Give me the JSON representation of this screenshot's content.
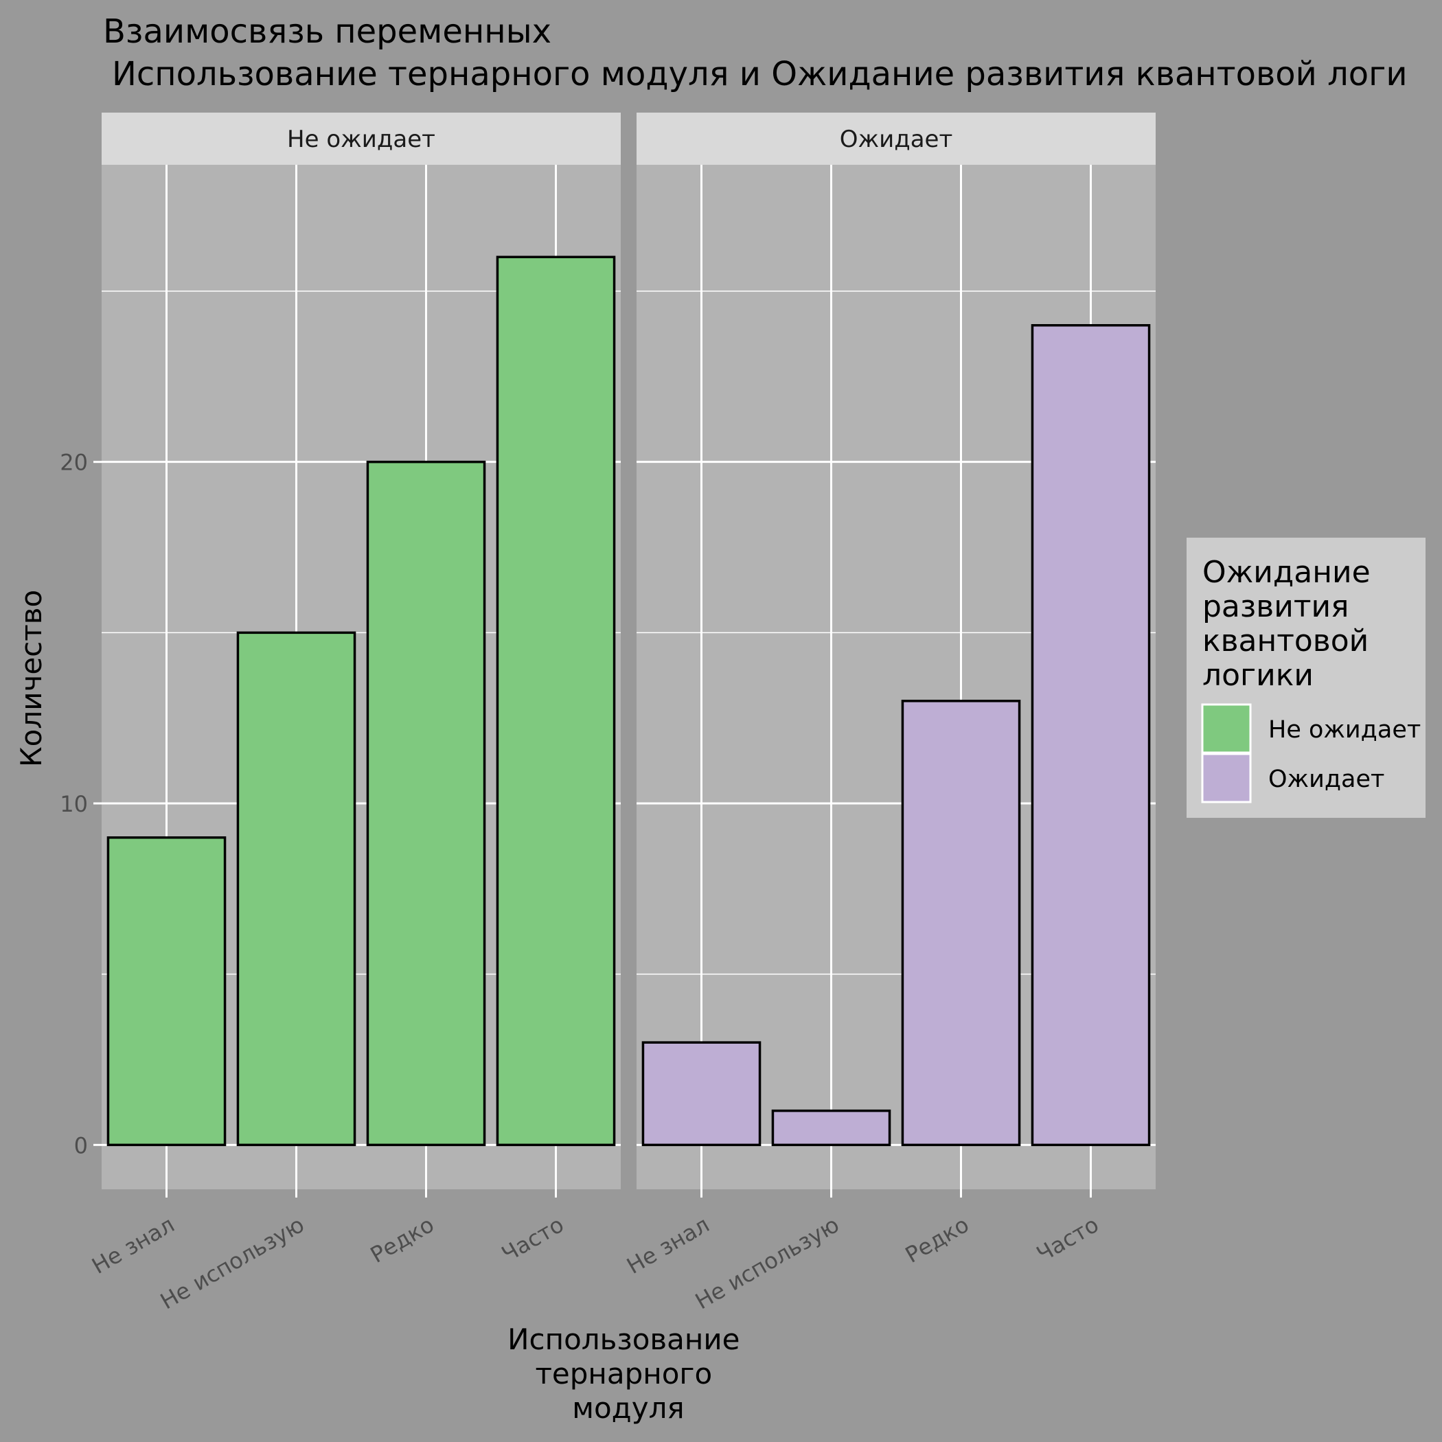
{
  "colors": {
    "background": "#999999",
    "panel": "#b3b3b3",
    "strip": "#d9d9d9",
    "grid": "#ffffff",
    "legend_bg": "#cccccc",
    "bar_outline": "#000000"
  },
  "chart_data": {
    "type": "bar",
    "title": "Взаимосвязь переменных",
    "subtitle": "Использование тернарного модуля и Ожидание развития квантовой логи",
    "xlabel": "Использование тернарного модуля",
    "xlabel_lines": [
      "Использование",
      "тернарного",
      "модуля"
    ],
    "ylabel": "Количество",
    "categories": [
      "Не знал",
      "Не использую",
      "Редко",
      "Часто"
    ],
    "ylim": [
      -1.3,
      28.7
    ],
    "yticks": [
      0,
      10,
      20
    ],
    "grid": true,
    "legend_position": "right",
    "legend": {
      "title": "Ожидание развития квантовой логики",
      "title_lines": [
        "Ожидание",
        "развития",
        "квантовой",
        "логики"
      ],
      "entries": [
        {
          "label": "Не ожидает",
          "color": "#7fc97f"
        },
        {
          "label": "Ожидает",
          "color": "#beaed4"
        }
      ]
    },
    "facets": [
      {
        "label": "Не ожидает",
        "color": "#7fc97f",
        "values": [
          9,
          15,
          20,
          26
        ]
      },
      {
        "label": "Ожидает",
        "color": "#beaed4",
        "values": [
          3,
          1,
          13,
          24
        ]
      }
    ]
  }
}
